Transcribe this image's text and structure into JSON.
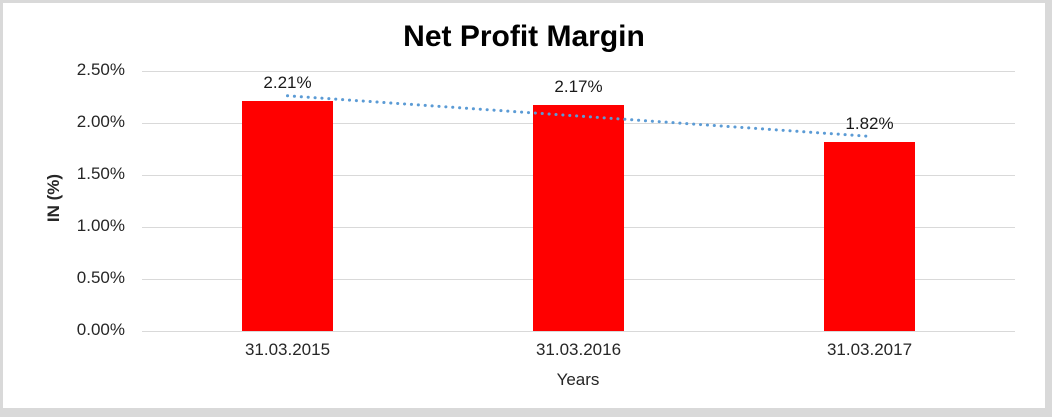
{
  "chart_data": {
    "type": "bar",
    "title": "Net Profit Margin",
    "categories": [
      "31.03.2015",
      "31.03.2016",
      "31.03.2017"
    ],
    "values": [
      2.21,
      2.17,
      1.82
    ],
    "data_labels": [
      "2.21%",
      "2.17%",
      "1.82%"
    ],
    "xlabel": "Years",
    "ylabel": "IN (%)",
    "ylim": [
      0,
      2.5
    ],
    "ytick_step": 0.5,
    "ytick_labels": [
      "0.00%",
      "0.50%",
      "1.00%",
      "1.50%",
      "2.00%",
      "2.50%"
    ],
    "grid": true,
    "legend": "none",
    "bar_color": "#ff0000",
    "gridline_color": "#d9d9d9",
    "frame_border_color": "#d9d9d9",
    "trendline": {
      "type": "linear",
      "style": "dotted",
      "color": "#5b9bd5"
    }
  }
}
